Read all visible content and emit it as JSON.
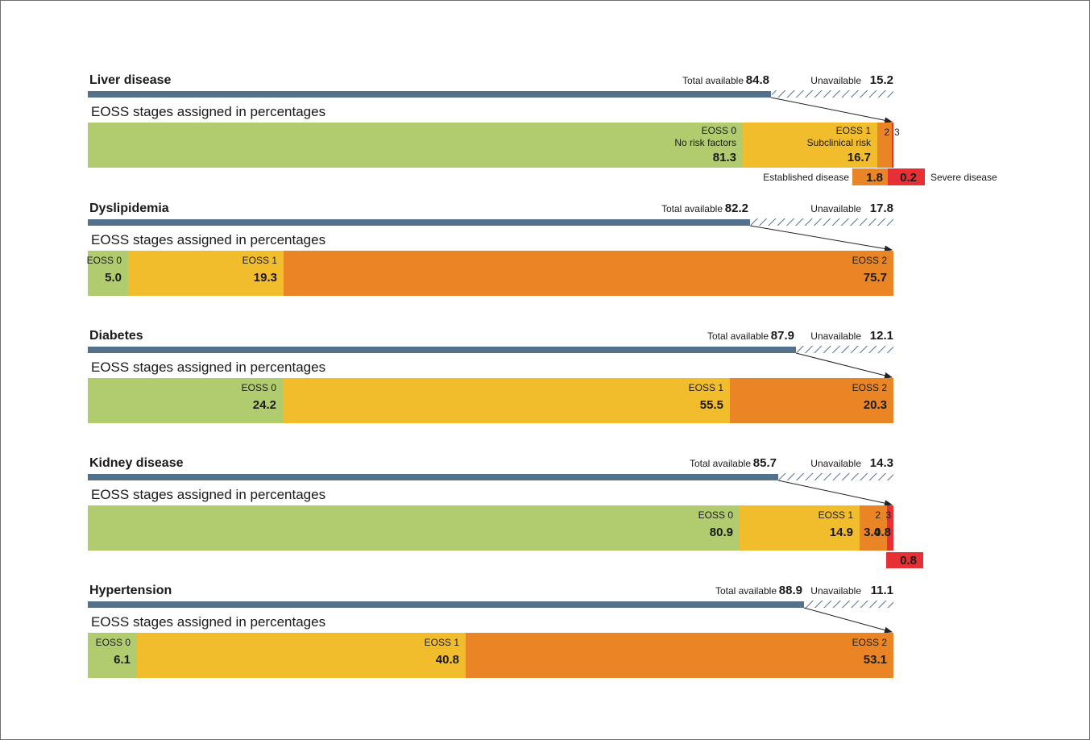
{
  "colors": {
    "stage0": "#b1cc6e",
    "stage1": "#f2bd2c",
    "stage2": "#e98524",
    "stage3": "#e63036",
    "available_bar": "#53718c",
    "hatch": "#53718c"
  },
  "chart_data": [
    {
      "type": "bar",
      "title": "Liver disease",
      "total_available_label": "Total available",
      "total_available": 84.8,
      "unavailable_label": "Unavailable",
      "unavailable": 15.2,
      "subtitle": "EOSS stages assigned in percentages",
      "segments": [
        {
          "stage": "EOSS 0",
          "short": "EOSS 0",
          "desc": "No risk factors",
          "value": 81.3
        },
        {
          "stage": "EOSS 1",
          "short": "EOSS 1",
          "desc": "Subclinical risk",
          "value": 16.7
        },
        {
          "stage": "EOSS 2",
          "short": "2",
          "desc": "Established disease",
          "value": 1.8
        },
        {
          "stage": "EOSS 3",
          "short": "3",
          "desc": "Severe disease",
          "value": 0.2
        }
      ]
    },
    {
      "type": "bar",
      "title": "Dyslipidemia",
      "total_available_label": "Total available",
      "total_available": 82.2,
      "unavailable_label": "Unavailable",
      "unavailable": 17.8,
      "subtitle": "EOSS stages assigned in percentages",
      "segments": [
        {
          "stage": "EOSS 0",
          "short": "EOSS 0",
          "value": 5.0
        },
        {
          "stage": "EOSS 1",
          "short": "EOSS 1",
          "value": 19.3
        },
        {
          "stage": "EOSS 2",
          "short": "EOSS 2",
          "value": 75.7
        }
      ]
    },
    {
      "type": "bar",
      "title": "Diabetes",
      "total_available_label": "Total available",
      "total_available": 87.9,
      "unavailable_label": "Unavailable",
      "unavailable": 12.1,
      "subtitle": "EOSS stages assigned in percentages",
      "segments": [
        {
          "stage": "EOSS 0",
          "short": "EOSS 0",
          "value": 24.2
        },
        {
          "stage": "EOSS 1",
          "short": "EOSS 1",
          "value": 55.5
        },
        {
          "stage": "EOSS 2",
          "short": "EOSS 2",
          "value": 20.3
        }
      ]
    },
    {
      "type": "bar",
      "title": "Kidney disease",
      "total_available_label": "Total available",
      "total_available": 85.7,
      "unavailable_label": "Unavailable",
      "unavailable": 14.3,
      "subtitle": "EOSS stages assigned in percentages",
      "segments": [
        {
          "stage": "EOSS 0",
          "short": "EOSS 0",
          "value": 80.9
        },
        {
          "stage": "EOSS 1",
          "short": "EOSS 1",
          "value": 14.9
        },
        {
          "stage": "EOSS 2",
          "short": "2",
          "value": 3.4
        },
        {
          "stage": "EOSS 3",
          "short": "3",
          "value": 0.8
        }
      ]
    },
    {
      "type": "bar",
      "title": "Hypertension",
      "total_available_label": "Total available",
      "total_available": 88.9,
      "unavailable_label": "Unavailable",
      "unavailable": 11.1,
      "subtitle": "EOSS stages assigned in percentages",
      "segments": [
        {
          "stage": "EOSS 0",
          "short": "EOSS 0",
          "value": 6.1
        },
        {
          "stage": "EOSS 1",
          "short": "EOSS 1",
          "value": 40.8
        },
        {
          "stage": "EOSS 2",
          "short": "EOSS 2",
          "value": 53.1
        }
      ]
    }
  ]
}
